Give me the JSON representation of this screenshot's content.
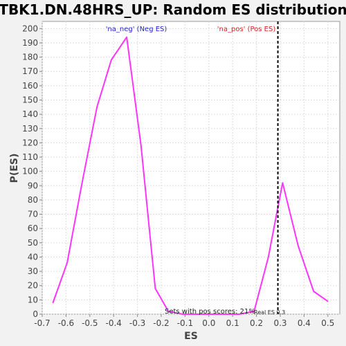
{
  "chart_data": {
    "type": "line",
    "title": "TBK1.DN.48HRS_UP: Random ES distribution",
    "xlabel": "ES",
    "ylabel": "P(ES)",
    "xlim": [
      -0.7,
      0.55
    ],
    "ylim": [
      0,
      205
    ],
    "x_ticks": [
      -0.7,
      -0.6,
      -0.5,
      -0.4,
      -0.3,
      -0.2,
      -0.1,
      0.0,
      0.1,
      0.2,
      0.3,
      0.4,
      0.5
    ],
    "x_tick_labels": [
      "-0.7",
      "-0.6",
      "-0.5",
      "-0.4",
      "-0.3",
      "-0.2",
      "-0.1",
      "0.0",
      "0.1",
      "0.2",
      "0.3",
      "0.4",
      "0.5"
    ],
    "y_ticks": [
      0,
      10,
      20,
      30,
      40,
      50,
      60,
      70,
      80,
      90,
      100,
      110,
      120,
      130,
      140,
      150,
      160,
      170,
      180,
      190,
      200
    ],
    "y_tick_labels": [
      "0",
      "10",
      "20",
      "30",
      "40",
      "50",
      "60",
      "70",
      "80",
      "90",
      "100",
      "110",
      "120",
      "130",
      "140",
      "150",
      "160",
      "170",
      "180",
      "190",
      "200"
    ],
    "grid": true,
    "series": [
      {
        "color": "#ff33ff",
        "x": [
          -0.655,
          -0.595,
          -0.535,
          -0.47,
          -0.41,
          -0.345,
          -0.285,
          -0.225,
          -0.17,
          -0.11,
          -0.05,
          0.01,
          0.07,
          0.13,
          0.19,
          0.25,
          0.31,
          0.375,
          0.44,
          0.5
        ],
        "y": [
          8,
          36,
          90,
          145,
          178,
          194,
          118,
          18,
          2,
          0,
          0,
          0,
          0,
          0,
          2,
          40,
          92,
          48,
          16,
          9
        ]
      }
    ],
    "real_es": 0.29,
    "annotations": {
      "neg_label": "'na_neg' (Neg ES)",
      "pos_label": "'na_pos' (Pos ES)",
      "pos_scores_label": "Sets with pos scores: 21%",
      "real_es_label": "Real ES 0.3"
    },
    "colors": {
      "neg_label": "#2222cc",
      "pos_label": "#dd2222",
      "line": "#ff33ff",
      "grid": "#dddddd",
      "real_es_line": "#000000"
    }
  }
}
